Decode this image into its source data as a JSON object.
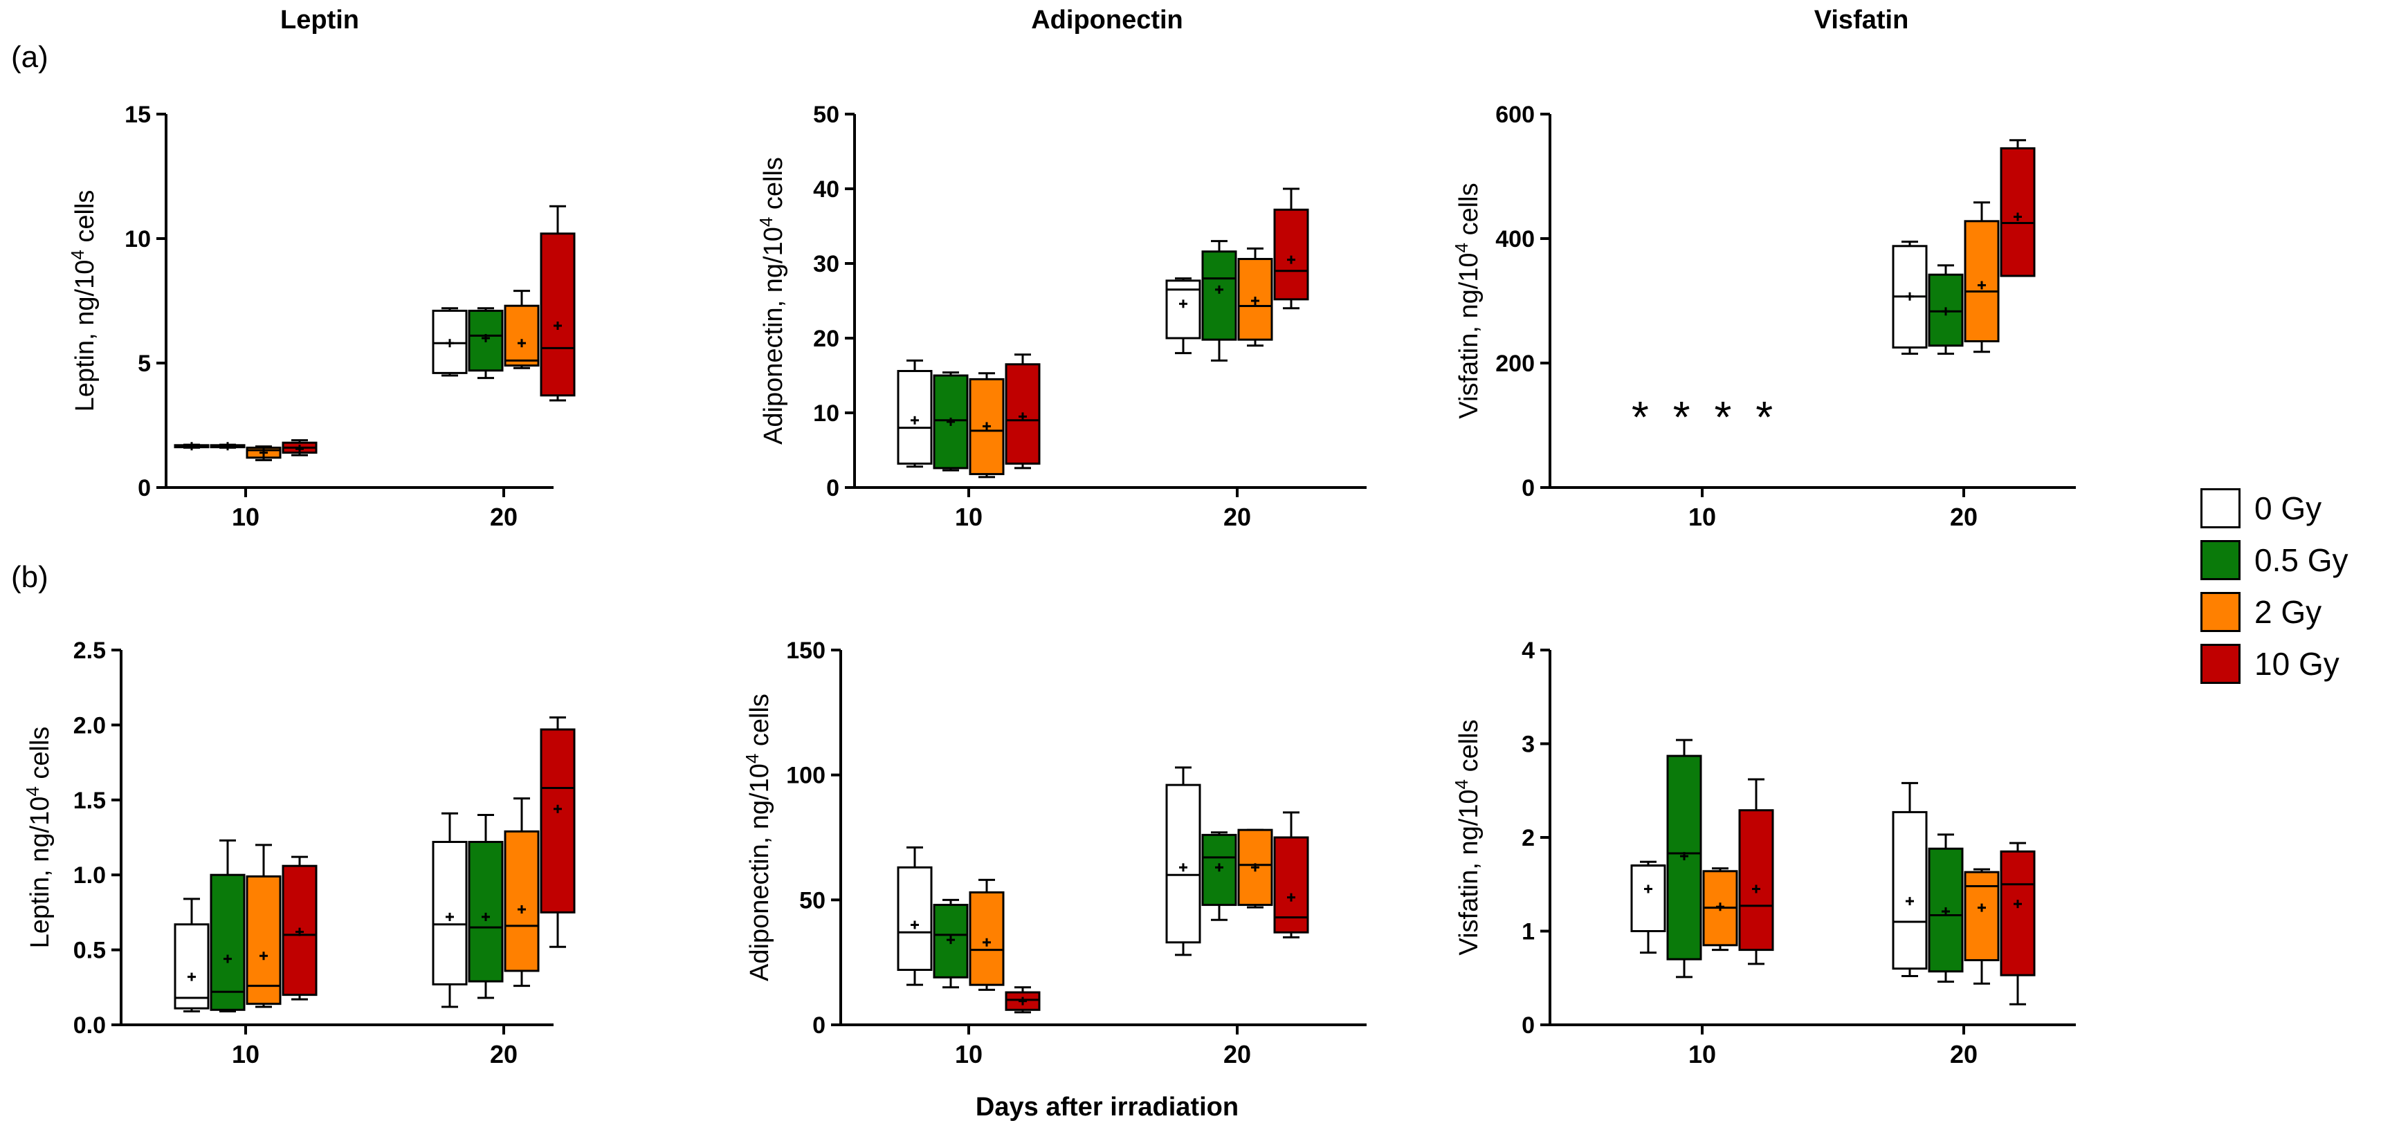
{
  "figure": {
    "column_titles": [
      "Leptin",
      "Adiponectin",
      "Visfatin"
    ],
    "row_labels": [
      "(a)",
      "(b)"
    ],
    "xaxis_title": "Days after irradiation"
  },
  "legend": {
    "items": [
      {
        "label": "0 Gy",
        "color": "#ffffff"
      },
      {
        "label": "0.5 Gy",
        "color": "#0a7a0a"
      },
      {
        "label": "2 Gy",
        "color": "#ff8000"
      },
      {
        "label": "10 Gy",
        "color": "#c00000"
      }
    ]
  },
  "chart_data": [
    {
      "type": "box",
      "id": "a-leptin",
      "row": "(a)",
      "title": "Leptin",
      "ylabel_prefix": "Leptin, ng/10",
      "ylabel_exp": "4",
      "ylabel_suffix": " cells",
      "ylim": [
        0,
        15
      ],
      "yticks": [
        0,
        5,
        10,
        15
      ],
      "ytick_labels": [
        "0",
        "5",
        "10",
        "15"
      ],
      "categories": [
        "10",
        "20"
      ],
      "series": [
        {
          "name": "0 Gy",
          "color": "#ffffff",
          "boxes": [
            {
              "min": 1.6,
              "q1": 1.62,
              "median": 1.66,
              "q3": 1.7,
              "max": 1.72,
              "mean": 1.66
            },
            {
              "min": 4.5,
              "q1": 4.6,
              "median": 5.8,
              "q3": 7.1,
              "max": 7.2,
              "mean": 5.8
            }
          ]
        },
        {
          "name": "0.5 Gy",
          "color": "#0a7a0a",
          "boxes": [
            {
              "min": 1.6,
              "q1": 1.62,
              "median": 1.66,
              "q3": 1.7,
              "max": 1.72,
              "mean": 1.66
            },
            {
              "min": 4.4,
              "q1": 4.7,
              "median": 6.1,
              "q3": 7.1,
              "max": 7.2,
              "mean": 6.0
            }
          ]
        },
        {
          "name": "2 Gy",
          "color": "#ff8000",
          "boxes": [
            {
              "min": 1.1,
              "q1": 1.2,
              "median": 1.5,
              "q3": 1.6,
              "max": 1.65,
              "mean": 1.4
            },
            {
              "min": 4.8,
              "q1": 4.9,
              "median": 5.1,
              "q3": 7.3,
              "max": 7.9,
              "mean": 5.8
            }
          ]
        },
        {
          "name": "10 Gy",
          "color": "#c00000",
          "boxes": [
            {
              "min": 1.3,
              "q1": 1.4,
              "median": 1.6,
              "q3": 1.8,
              "max": 1.9,
              "mean": 1.55
            },
            {
              "min": 3.5,
              "q1": 3.7,
              "median": 5.6,
              "q3": 10.2,
              "max": 11.3,
              "mean": 6.5
            }
          ]
        }
      ]
    },
    {
      "type": "box",
      "id": "a-adiponectin",
      "row": "(a)",
      "title": "Adiponectin",
      "ylabel_prefix": "Adiponectin, ng/10",
      "ylabel_exp": "4",
      "ylabel_suffix": " cells",
      "ylim": [
        0,
        50
      ],
      "yticks": [
        0,
        10,
        20,
        30,
        40,
        50
      ],
      "ytick_labels": [
        "0",
        "10",
        "20",
        "30",
        "40",
        "50"
      ],
      "categories": [
        "10",
        "20"
      ],
      "series": [
        {
          "name": "0 Gy",
          "color": "#ffffff",
          "boxes": [
            {
              "min": 2.8,
              "q1": 3.2,
              "median": 8.0,
              "q3": 15.6,
              "max": 17.0,
              "mean": 9.0
            },
            {
              "min": 18.0,
              "q1": 20.0,
              "median": 26.5,
              "q3": 27.7,
              "max": 28.0,
              "mean": 24.6
            }
          ]
        },
        {
          "name": "0.5 Gy",
          "color": "#0a7a0a",
          "boxes": [
            {
              "min": 2.3,
              "q1": 2.6,
              "median": 9.0,
              "q3": 15.0,
              "max": 15.4,
              "mean": 8.8
            },
            {
              "min": 17.0,
              "q1": 19.8,
              "median": 28.0,
              "q3": 31.6,
              "max": 33.0,
              "mean": 26.5
            }
          ]
        },
        {
          "name": "2 Gy",
          "color": "#ff8000",
          "boxes": [
            {
              "min": 1.4,
              "q1": 1.8,
              "median": 7.6,
              "q3": 14.5,
              "max": 15.3,
              "mean": 8.2
            },
            {
              "min": 19.0,
              "q1": 19.8,
              "median": 24.3,
              "q3": 30.6,
              "max": 32.0,
              "mean": 25.0
            }
          ]
        },
        {
          "name": "10 Gy",
          "color": "#c00000",
          "boxes": [
            {
              "min": 2.6,
              "q1": 3.2,
              "median": 9.0,
              "q3": 16.5,
              "max": 17.8,
              "mean": 9.5
            },
            {
              "min": 24.0,
              "q1": 25.2,
              "median": 29.0,
              "q3": 37.2,
              "max": 40.0,
              "mean": 30.5
            }
          ]
        }
      ]
    },
    {
      "type": "box",
      "id": "a-visfatin",
      "row": "(a)",
      "title": "Visfatin",
      "ylabel_prefix": "Visfatin, ng/10",
      "ylabel_exp": "4",
      "ylabel_suffix": " cells",
      "ylim": [
        0,
        600
      ],
      "yticks": [
        0,
        200,
        400,
        600
      ],
      "ytick_labels": [
        "0",
        "200",
        "400",
        "600"
      ],
      "categories": [
        "10",
        "20"
      ],
      "annotations": [
        {
          "text": "*",
          "y": 120
        }
      ],
      "series": [
        {
          "name": "0 Gy",
          "color": "#ffffff",
          "boxes": [
            null,
            {
              "min": 215,
              "q1": 225,
              "median": 307,
              "q3": 388,
              "max": 395,
              "mean": 307
            }
          ]
        },
        {
          "name": "0.5 Gy",
          "color": "#0a7a0a",
          "boxes": [
            null,
            {
              "min": 215,
              "q1": 228,
              "median": 283,
              "q3": 342,
              "max": 357,
              "mean": 283
            }
          ]
        },
        {
          "name": "2 Gy",
          "color": "#ff8000",
          "boxes": [
            null,
            {
              "min": 218,
              "q1": 235,
              "median": 315,
              "q3": 428,
              "max": 458,
              "mean": 325
            }
          ]
        },
        {
          "name": "10 Gy",
          "color": "#c00000",
          "boxes": [
            null,
            {
              "min": 340,
              "q1": 340,
              "median": 425,
              "q3": 545,
              "max": 558,
              "mean": 435
            }
          ]
        }
      ]
    },
    {
      "type": "box",
      "id": "b-leptin",
      "row": "(b)",
      "title": "Leptin",
      "ylabel_prefix": "Leptin, ng/10",
      "ylabel_exp": "4",
      "ylabel_suffix": " cells",
      "ylim": [
        0,
        2.5
      ],
      "yticks": [
        0,
        0.5,
        1.0,
        1.5,
        2.0,
        2.5
      ],
      "ytick_labels": [
        "0.0",
        "0.5",
        "1.0",
        "1.5",
        "2.0",
        "2.5"
      ],
      "categories": [
        "10",
        "20"
      ],
      "series": [
        {
          "name": "0 Gy",
          "color": "#ffffff",
          "boxes": [
            {
              "min": 0.09,
              "q1": 0.11,
              "median": 0.18,
              "q3": 0.67,
              "max": 0.84,
              "mean": 0.32
            },
            {
              "min": 0.12,
              "q1": 0.27,
              "median": 0.67,
              "q3": 1.22,
              "max": 1.41,
              "mean": 0.72
            }
          ]
        },
        {
          "name": "0.5 Gy",
          "color": "#0a7a0a",
          "boxes": [
            {
              "min": 0.09,
              "q1": 0.1,
              "median": 0.22,
              "q3": 1.0,
              "max": 1.23,
              "mean": 0.44
            },
            {
              "min": 0.18,
              "q1": 0.29,
              "median": 0.65,
              "q3": 1.22,
              "max": 1.4,
              "mean": 0.72
            }
          ]
        },
        {
          "name": "2 Gy",
          "color": "#ff8000",
          "boxes": [
            {
              "min": 0.12,
              "q1": 0.14,
              "median": 0.26,
              "q3": 0.99,
              "max": 1.2,
              "mean": 0.46
            },
            {
              "min": 0.26,
              "q1": 0.36,
              "median": 0.66,
              "q3": 1.29,
              "max": 1.51,
              "mean": 0.77
            }
          ]
        },
        {
          "name": "10 Gy",
          "color": "#c00000",
          "boxes": [
            {
              "min": 0.17,
              "q1": 0.2,
              "median": 0.6,
              "q3": 1.06,
              "max": 1.12,
              "mean": 0.62
            },
            {
              "min": 0.52,
              "q1": 0.75,
              "median": 1.58,
              "q3": 1.97,
              "max": 2.05,
              "mean": 1.44
            }
          ]
        }
      ]
    },
    {
      "type": "box",
      "id": "b-adiponectin",
      "row": "(b)",
      "title": "Adiponectin",
      "ylabel_prefix": "Adiponectin, ng/10",
      "ylabel_exp": "4",
      "ylabel_suffix": " cells",
      "ylim": [
        0,
        150
      ],
      "yticks": [
        0,
        50,
        100,
        150
      ],
      "ytick_labels": [
        "0",
        "50",
        "100",
        "150"
      ],
      "categories": [
        "10",
        "20"
      ],
      "series": [
        {
          "name": "0 Gy",
          "color": "#ffffff",
          "boxes": [
            {
              "min": 16,
              "q1": 22,
              "median": 37,
              "q3": 63,
              "max": 71,
              "mean": 40
            },
            {
              "min": 28,
              "q1": 33,
              "median": 60,
              "q3": 96,
              "max": 103,
              "mean": 63
            }
          ]
        },
        {
          "name": "0.5 Gy",
          "color": "#0a7a0a",
          "boxes": [
            {
              "min": 15,
              "q1": 19,
              "median": 36,
              "q3": 48,
              "max": 50,
              "mean": 34
            },
            {
              "min": 42,
              "q1": 48,
              "median": 67,
              "q3": 76,
              "max": 77,
              "mean": 63
            }
          ]
        },
        {
          "name": "2 Gy",
          "color": "#ff8000",
          "boxes": [
            {
              "min": 14,
              "q1": 16,
              "median": 30,
              "q3": 53,
              "max": 58,
              "mean": 33
            },
            {
              "min": 47,
              "q1": 48,
              "median": 64,
              "q3": 78,
              "max": 78,
              "mean": 63
            }
          ]
        },
        {
          "name": "10 Gy",
          "color": "#c00000",
          "boxes": [
            {
              "min": 5,
              "q1": 6,
              "median": 10,
              "q3": 13,
              "max": 15,
              "mean": 9.5
            },
            {
              "min": 35,
              "q1": 37,
              "median": 43,
              "q3": 75,
              "max": 85,
              "mean": 51
            }
          ]
        }
      ]
    },
    {
      "type": "box",
      "id": "b-visfatin",
      "row": "(b)",
      "title": "Visfatin",
      "ylabel_prefix": "Visfatin, ng/10",
      "ylabel_exp": "4",
      "ylabel_suffix": " cells",
      "ylim": [
        0,
        4
      ],
      "yticks": [
        0,
        1,
        2,
        3,
        4
      ],
      "ytick_labels": [
        "0",
        "1",
        "2",
        "3",
        "4"
      ],
      "categories": [
        "10",
        "20"
      ],
      "series": [
        {
          "name": "0 Gy",
          "color": "#ffffff",
          "boxes": [
            {
              "min": 0.77,
              "q1": 1.0,
              "median": 1.7,
              "q3": 1.7,
              "max": 1.74,
              "mean": 1.45
            },
            {
              "min": 0.52,
              "q1": 0.6,
              "median": 1.1,
              "q3": 2.27,
              "max": 2.58,
              "mean": 1.32
            }
          ]
        },
        {
          "name": "0.5 Gy",
          "color": "#0a7a0a",
          "boxes": [
            {
              "min": 0.51,
              "q1": 0.7,
              "median": 1.83,
              "q3": 2.87,
              "max": 3.04,
              "mean": 1.8
            },
            {
              "min": 0.46,
              "q1": 0.57,
              "median": 1.17,
              "q3": 1.88,
              "max": 2.03,
              "mean": 1.21
            }
          ]
        },
        {
          "name": "2 Gy",
          "color": "#ff8000",
          "boxes": [
            {
              "min": 0.8,
              "q1": 0.85,
              "median": 1.25,
              "q3": 1.64,
              "max": 1.67,
              "mean": 1.26
            },
            {
              "min": 0.44,
              "q1": 0.69,
              "median": 1.48,
              "q3": 1.63,
              "max": 1.66,
              "mean": 1.25
            }
          ]
        },
        {
          "name": "10 Gy",
          "color": "#c00000",
          "boxes": [
            {
              "min": 0.65,
              "q1": 0.8,
              "median": 1.27,
              "q3": 2.29,
              "max": 2.62,
              "mean": 1.45
            },
            {
              "min": 0.22,
              "q1": 0.53,
              "median": 1.5,
              "q3": 1.85,
              "max": 1.94,
              "mean": 1.29
            }
          ]
        }
      ]
    }
  ]
}
